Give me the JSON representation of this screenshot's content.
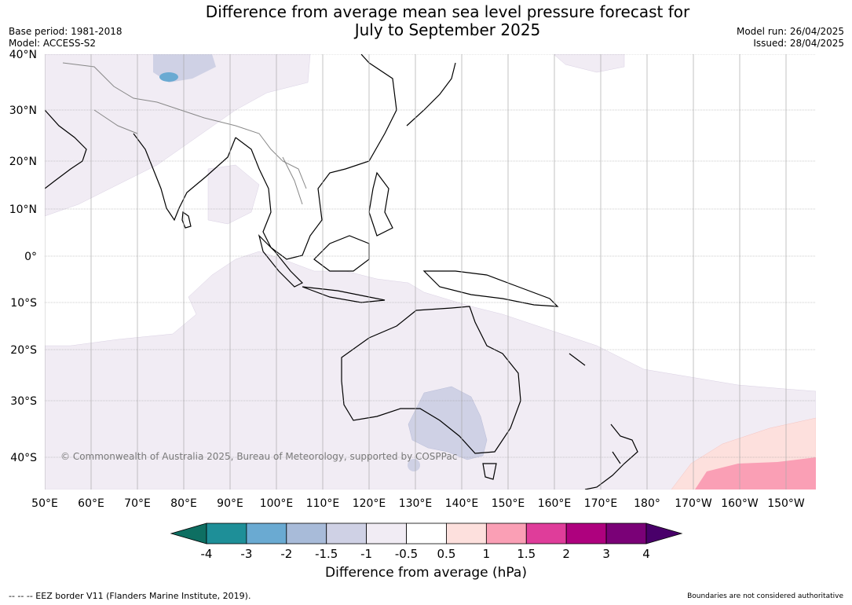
{
  "title_line1": "Difference from average mean sea level pressure forecast for",
  "title_line2": "July to September 2025",
  "base_period": "Base period: 1981-2018",
  "model": "Model: ACCESS-S2",
  "model_run": "Model run: 26/04/2025",
  "issued": "Issued: 28/04/2025",
  "lat_labels": [
    "40°N",
    "30°N",
    "20°N",
    "10°N",
    "0°",
    "10°S",
    "20°S",
    "30°S",
    "40°S"
  ],
  "lon_labels": [
    "50°E",
    "60°E",
    "70°E",
    "80°E",
    "90°E",
    "100°E",
    "110°E",
    "120°E",
    "130°E",
    "140°E",
    "150°E",
    "160°E",
    "170°E",
    "180°",
    "170°W",
    "160°W",
    "150°W"
  ],
  "copyright": "© Commonwealth of Australia 2025, Bureau of Meteorology, supported by COSPPac",
  "colorbar": {
    "ticks": [
      "-4",
      "-3",
      "-2",
      "-1.5",
      "-1",
      "-0.5",
      "0.5",
      "1",
      "1.5",
      "2",
      "3",
      "4"
    ],
    "colors": [
      "#0e6f62",
      "#1e8f98",
      "#6aaad2",
      "#a8bbd9",
      "#cfd1e5",
      "#f1ecf4",
      "#ffffff",
      "#fde0dd",
      "#fa9fb5",
      "#df3d9a",
      "#ae017e",
      "#7a0177",
      "#49006a"
    ],
    "label": "Difference from average (hPa)"
  },
  "footer_left": "--  --  -- EEZ border V11 (Flanders Marine Institute, 2019).",
  "footer_right": "Boundaries are not considered authoritative"
}
